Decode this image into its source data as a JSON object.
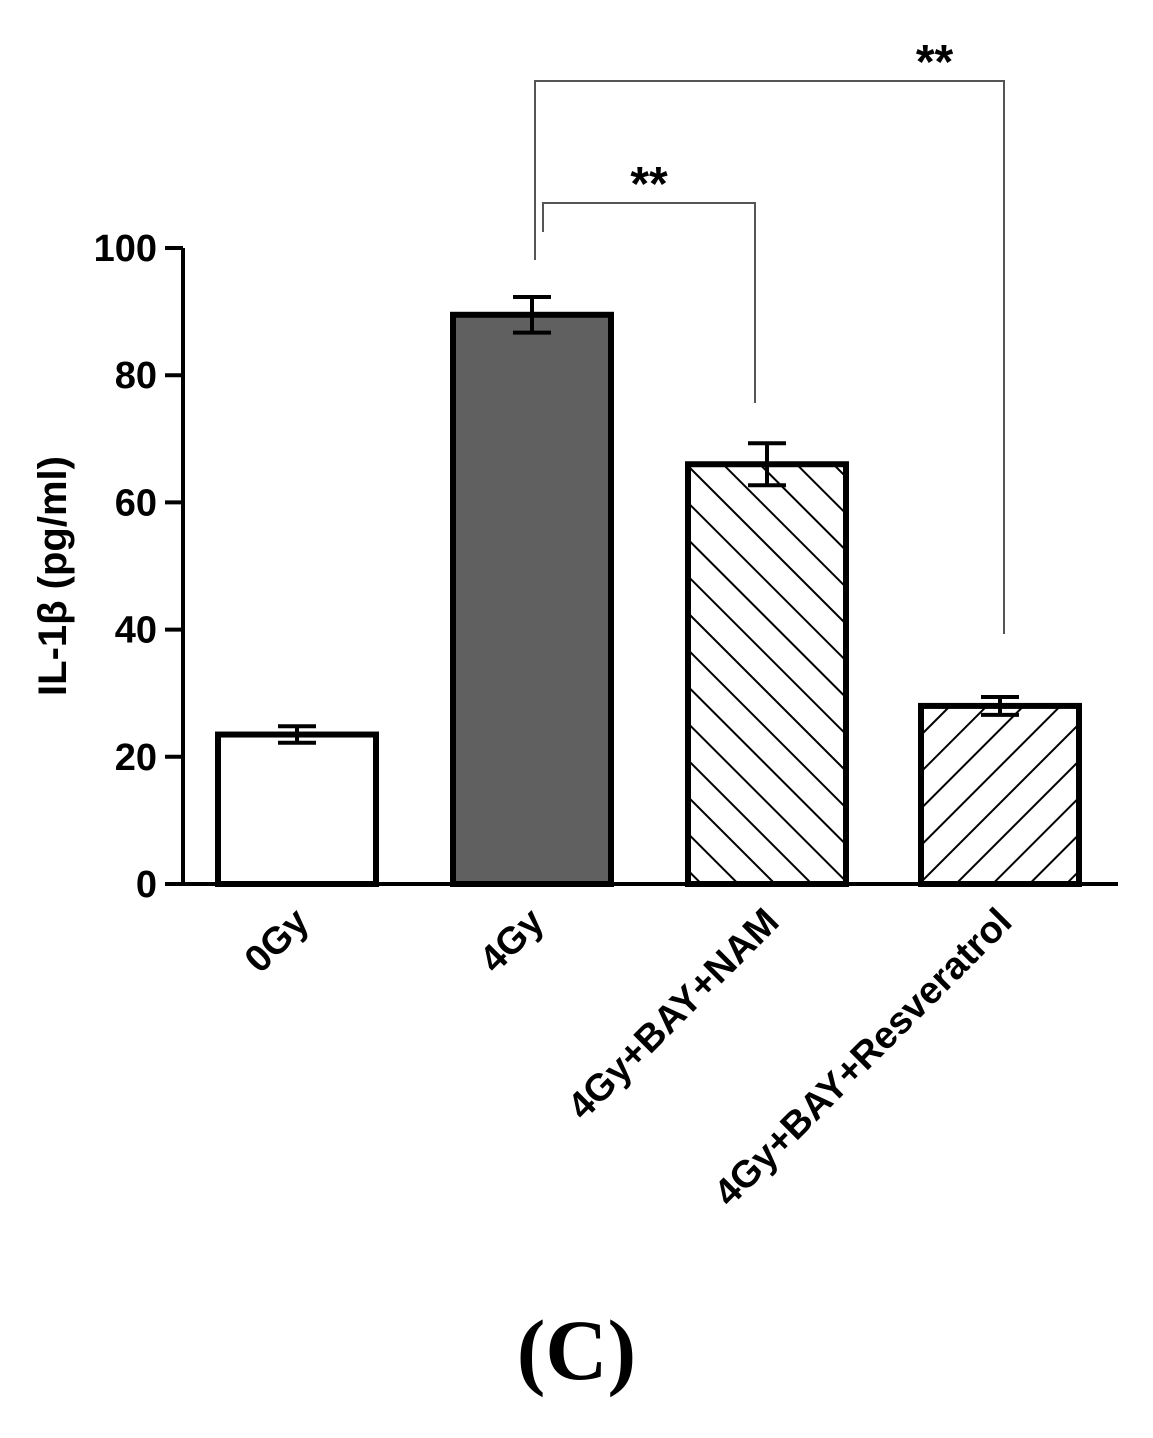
{
  "chart_data": {
    "type": "bar",
    "categories": [
      "0Gy",
      "4Gy",
      "4Gy+BAY+NAM",
      "4Gy+BAY+Resveratrol"
    ],
    "values": [
      23.5,
      89.5,
      66,
      28
    ],
    "errors": [
      1.3,
      2.8,
      3.3,
      1.4
    ],
    "fills": [
      "white",
      "solid",
      "hatch-forward",
      "hatch-back"
    ],
    "ylabel": "IL-1β (pg/ml)",
    "xlabel": "",
    "ylim": [
      0,
      100
    ],
    "yticks": [
      0,
      20,
      40,
      60,
      80,
      100
    ],
    "annotations": [
      {
        "from": "4Gy",
        "to": "4Gy+BAY+NAM",
        "label": "**"
      },
      {
        "from": "4Gy",
        "to": "4Gy+BAY+Resveratrol",
        "label": "**"
      }
    ]
  },
  "colors": {
    "solid_bar": "#606060",
    "outline": "#000000",
    "bracket": "#555555"
  },
  "panel_label": "(C)"
}
